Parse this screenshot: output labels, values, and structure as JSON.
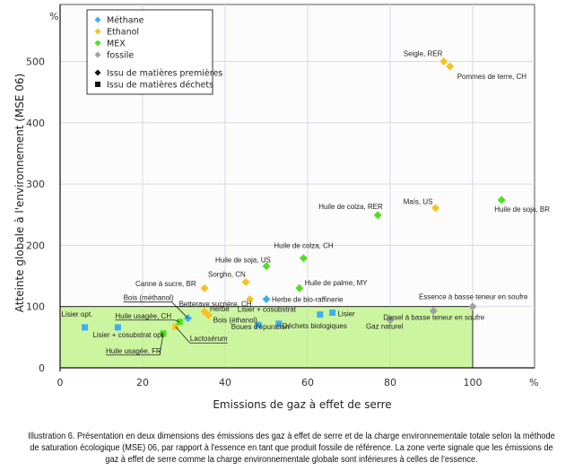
{
  "chart_data": {
    "type": "scatter",
    "xlabel": "Emissions de gaz à effet de serre",
    "ylabel": "Atteinte globale à l'environnement (MSE 06)",
    "x_unit": "%",
    "y_unit": "%",
    "xlim": [
      0,
      115
    ],
    "ylim": [
      0,
      590
    ],
    "x_ticks": [
      0,
      20,
      40,
      60,
      80,
      100
    ],
    "y_ticks": [
      0,
      100,
      200,
      300,
      400,
      500
    ],
    "grid": true,
    "green_zone": {
      "x": [
        0,
        100
      ],
      "y": [
        0,
        100
      ],
      "color": "#ccf5a0",
      "meaning": "below reference (essence)"
    },
    "legend": {
      "placement": "top-left",
      "entries": [
        {
          "label": "Méthane",
          "color": "#3bb0f0",
          "shape": "diamond"
        },
        {
          "label": "Ethanol",
          "color": "#f8c020",
          "shape": "diamond"
        },
        {
          "label": "MEX",
          "color": "#50e020",
          "shape": "diamond"
        },
        {
          "label": "fossile",
          "color": "#a0a0a0",
          "shape": "diamond"
        },
        {
          "label": "Issu de matières premières",
          "color": "#111111",
          "shape": "diamond"
        },
        {
          "label": "Issu de matières déchets",
          "color": "#111111",
          "shape": "square"
        }
      ]
    },
    "series": [
      {
        "name": "Méthane",
        "color": "#3bb0f0",
        "points": [
          {
            "label": "Lisier opt.",
            "x": 6,
            "y": 66,
            "shape": "square"
          },
          {
            "label": "Lisier + cosubstrat opt.",
            "x": 14,
            "y": 66,
            "shape": "square"
          },
          {
            "label": "Bois (méthanol)",
            "x": 31,
            "y": 81,
            "shape": "diamond"
          },
          {
            "label": "Herbe de bio-raffinerie",
            "x": 50,
            "y": 112,
            "shape": "diamond"
          },
          {
            "label": "Boues d'épuration",
            "x": 48,
            "y": 70,
            "shape": "square"
          },
          {
            "label": "Déchets biologiques",
            "x": 53,
            "y": 72,
            "shape": "square"
          },
          {
            "label": "Lisier + cosubstrat",
            "x": 63,
            "y": 87,
            "shape": "square"
          },
          {
            "label": "Lisier",
            "x": 66,
            "y": 90,
            "shape": "square"
          }
        ]
      },
      {
        "name": "Ethanol",
        "color": "#f8c020",
        "points": [
          {
            "label": "Seigle, RER",
            "x": 93,
            "y": 500,
            "shape": "diamond"
          },
          {
            "label": "Pommes de terre, CH",
            "x": 94.5,
            "y": 492,
            "shape": "diamond"
          },
          {
            "label": "Maïs, US",
            "x": 91,
            "y": 261,
            "shape": "diamond"
          },
          {
            "label": "Canne à sucre, BR",
            "x": 35,
            "y": 130,
            "shape": "diamond"
          },
          {
            "label": "Sorgho, CN",
            "x": 45,
            "y": 140,
            "shape": "diamond"
          },
          {
            "label": "Betterave sucrière, CH",
            "x": 46,
            "y": 112,
            "shape": "diamond"
          },
          {
            "label": "Herbe",
            "x": 35,
            "y": 92,
            "shape": "diamond"
          },
          {
            "label": "Bois (éthanol)",
            "x": 36,
            "y": 86,
            "shape": "diamond"
          },
          {
            "label": "Lactosérum",
            "x": 28,
            "y": 67,
            "shape": "square"
          }
        ]
      },
      {
        "name": "MEX",
        "color": "#50e020",
        "points": [
          {
            "label": "Huile de soja, BR",
            "x": 107,
            "y": 274,
            "shape": "diamond"
          },
          {
            "label": "Huile de colza, RER",
            "x": 77,
            "y": 249,
            "shape": "diamond"
          },
          {
            "label": "Huile de colza, CH",
            "x": 59,
            "y": 179,
            "shape": "diamond"
          },
          {
            "label": "Huile de soja, US",
            "x": 50,
            "y": 166,
            "shape": "diamond"
          },
          {
            "label": "Huile de palme, MY",
            "x": 58,
            "y": 130,
            "shape": "diamond"
          },
          {
            "label": "Huile usagée, CH",
            "x": 29,
            "y": 75,
            "shape": "square"
          },
          {
            "label": "Huile usagée, FR",
            "x": 25,
            "y": 56,
            "shape": "square"
          }
        ]
      },
      {
        "name": "fossile",
        "color": "#a0a0a0",
        "points": [
          {
            "label": "Essence à basse teneur en soufre",
            "x": 100,
            "y": 100,
            "shape": "diamond"
          },
          {
            "label": "Diesel à basse teneur en soufre",
            "x": 90.5,
            "y": 93,
            "shape": "diamond"
          },
          {
            "label": "Gaz naturel",
            "x": 80,
            "y": 78,
            "shape": "diamond"
          }
        ]
      }
    ]
  },
  "caption": "Illustration 6. Présentation en deux dimensions des émissions des gaz à effet de serre et de la charge environnementale totale selon la méthode de saturation écologique (MSE) 06, par rapport à l'essence en tant que produit fossile de référence. La zone verte signale que les émissions de gaz à effet de serre comme la charge environnementale globale sont inférieures à celles de l'essence."
}
